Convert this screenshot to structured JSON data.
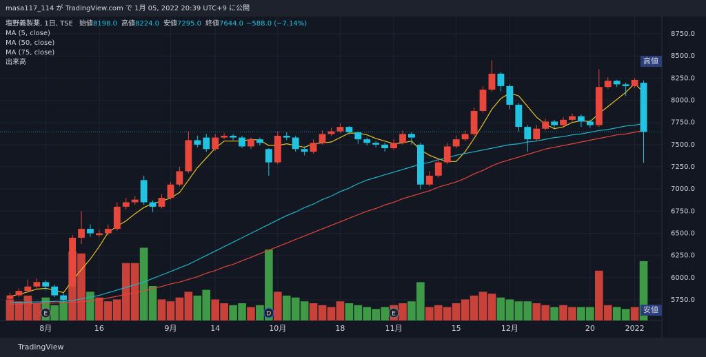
{
  "page_header": "masa117_114 が TradingView.com で 1月 05, 2022 20:39 UTC+9 に公開",
  "footer": "TradingView",
  "chart_data": {
    "type": "candlestick",
    "legend": {
      "symbol": "塩野義製薬, 1日, TSE",
      "items": [
        {
          "key": "始値",
          "value": "8198.0"
        },
        {
          "key": "高値",
          "value": "8224.0"
        },
        {
          "key": "安値",
          "value": "7295.0"
        },
        {
          "key": "終値",
          "value": "7644.0"
        }
      ],
      "change": "−588.0 (−7.14%)"
    },
    "categories": [
      null,
      null,
      null,
      null,
      "8月",
      null,
      null,
      null,
      null,
      null,
      "16",
      null,
      null,
      null,
      null,
      null,
      null,
      null,
      "9月",
      null,
      null,
      null,
      null,
      "14",
      null,
      null,
      null,
      null,
      null,
      null,
      "10月",
      null,
      null,
      null,
      null,
      null,
      null,
      "18",
      null,
      null,
      null,
      null,
      null,
      "11月",
      null,
      null,
      null,
      null,
      null,
      null,
      "15",
      null,
      null,
      null,
      null,
      null,
      "12月",
      null,
      null,
      null,
      null,
      null,
      null,
      null,
      null,
      "20",
      null,
      null,
      null,
      null,
      "2022",
      null
    ],
    "open": [
      5760,
      5800,
      5850,
      5900,
      5950,
      5900,
      5800,
      5900,
      6450,
      6550,
      6480,
      6500,
      6550,
      6800,
      6850,
      7100,
      6850,
      6800,
      6900,
      7050,
      7200,
      7550,
      7580,
      7450,
      7580,
      7600,
      7580,
      7480,
      7560,
      7450,
      7300,
      7600,
      7580,
      7450,
      7420,
      7520,
      7620,
      7650,
      7700,
      7640,
      7560,
      7520,
      7500,
      7460,
      7520,
      7620,
      7500,
      7050,
      7150,
      7300,
      7480,
      7560,
      7620,
      7880,
      8120,
      8300,
      8160,
      7950,
      7700,
      7560,
      7680,
      7760,
      7720,
      7780,
      7820,
      7760,
      7720,
      8150,
      8220,
      8180,
      8160,
      8198
    ],
    "high": [
      5830,
      5880,
      5980,
      5990,
      5970,
      5920,
      5820,
      6480,
      6750,
      6600,
      6540,
      6600,
      6850,
      6900,
      6920,
      7150,
      6870,
      6940,
      7080,
      7250,
      7650,
      7600,
      7620,
      7620,
      7630,
      7620,
      7600,
      7580,
      7580,
      7460,
      7650,
      7640,
      7600,
      7480,
      7560,
      7660,
      7690,
      7740,
      7710,
      7650,
      7580,
      7540,
      7520,
      7560,
      7660,
      7640,
      7520,
      7200,
      7340,
      7520,
      7600,
      7660,
      7920,
      8160,
      8450,
      8320,
      8180,
      7970,
      7720,
      7720,
      7790,
      7780,
      7810,
      7850,
      7840,
      7780,
      8350,
      8260,
      8230,
      8200,
      8250,
      8224
    ],
    "low": [
      5730,
      5780,
      5830,
      5870,
      5860,
      5780,
      5720,
      5880,
      6380,
      6460,
      6460,
      6480,
      6530,
      6770,
      6820,
      6820,
      6740,
      6780,
      6880,
      7030,
      7180,
      7470,
      7420,
      7430,
      7560,
      7550,
      7460,
      7450,
      7490,
      7150,
      7280,
      7550,
      7420,
      7380,
      7400,
      7500,
      7600,
      7630,
      7620,
      7510,
      7490,
      7470,
      7420,
      7440,
      7500,
      7500,
      7000,
      7030,
      7130,
      7280,
      7460,
      7540,
      7600,
      7860,
      8100,
      8100,
      7900,
      7650,
      7420,
      7540,
      7660,
      7690,
      7700,
      7760,
      7700,
      7690,
      7700,
      8130,
      8150,
      8050,
      8140,
      7295
    ],
    "close": [
      5800,
      5850,
      5900,
      5950,
      5900,
      5800,
      5750,
      6450,
      6550,
      6500,
      6500,
      6550,
      6800,
      6850,
      6880,
      6850,
      6800,
      6900,
      7050,
      7200,
      7550,
      7500,
      7450,
      7580,
      7600,
      7580,
      7480,
      7560,
      7520,
      7300,
      7600,
      7580,
      7450,
      7420,
      7520,
      7620,
      7650,
      7700,
      7640,
      7560,
      7520,
      7500,
      7460,
      7520,
      7620,
      7580,
      7050,
      7150,
      7300,
      7480,
      7560,
      7620,
      7880,
      8120,
      8300,
      8160,
      7950,
      7700,
      7560,
      7680,
      7760,
      7720,
      7780,
      7820,
      7760,
      7720,
      8150,
      8220,
      8180,
      8160,
      8230,
      7644
    ],
    "volume": [
      1100000,
      1000000,
      1300000,
      900000,
      1200000,
      800000,
      1000000,
      3600000,
      3500000,
      1500000,
      1200000,
      1000000,
      1100000,
      3000000,
      3000000,
      3800000,
      1800000,
      1100000,
      1000000,
      1200000,
      1500000,
      1300000,
      1600000,
      1100000,
      900000,
      800000,
      900000,
      700000,
      800000,
      3700000,
      1500000,
      1300000,
      1200000,
      1000000,
      900000,
      800000,
      700000,
      1000000,
      900000,
      800000,
      700000,
      600000,
      700000,
      800000,
      900000,
      1000000,
      2000000,
      700000,
      800000,
      700000,
      900000,
      1100000,
      1300000,
      1500000,
      1400000,
      1200000,
      1100000,
      1000000,
      1000000,
      900000,
      800000,
      700000,
      800000,
      700000,
      700000,
      700000,
      2600000,
      800000,
      700000,
      600000,
      700000,
      3100000
    ],
    "series": [
      {
        "name": "MA (5, close)",
        "color": "#e6c229",
        "values": [
          5790,
          5810,
          5840,
          5870,
          5880,
          5860,
          5830,
          5970,
          6090,
          6210,
          6350,
          6510,
          6580,
          6640,
          6720,
          6790,
          6840,
          6860,
          6900,
          6960,
          7100,
          7240,
          7350,
          7460,
          7540,
          7540,
          7540,
          7560,
          7550,
          7490,
          7490,
          7510,
          7490,
          7470,
          7510,
          7520,
          7530,
          7580,
          7630,
          7630,
          7610,
          7570,
          7540,
          7510,
          7520,
          7540,
          7440,
          7380,
          7340,
          7310,
          7310,
          7420,
          7570,
          7730,
          7900,
          8020,
          8080,
          8050,
          7930,
          7810,
          7730,
          7680,
          7700,
          7750,
          7770,
          7760,
          7850,
          7930,
          8010,
          8090,
          8190,
          8090
        ]
      },
      {
        "name": "MA (50, close)",
        "color": "#1fb5c9",
        "values": [
          5720,
          5722,
          5724,
          5726,
          5728,
          5732,
          5736,
          5740,
          5760,
          5780,
          5800,
          5830,
          5860,
          5890,
          5920,
          5950,
          5990,
          6030,
          6070,
          6110,
          6150,
          6200,
          6250,
          6300,
          6350,
          6400,
          6450,
          6500,
          6550,
          6600,
          6650,
          6700,
          6740,
          6790,
          6830,
          6880,
          6920,
          6970,
          7010,
          7060,
          7100,
          7130,
          7160,
          7190,
          7220,
          7250,
          7280,
          7300,
          7330,
          7350,
          7380,
          7400,
          7420,
          7440,
          7460,
          7480,
          7500,
          7510,
          7530,
          7540,
          7560,
          7580,
          7590,
          7610,
          7620,
          7640,
          7660,
          7670,
          7690,
          7710,
          7720,
          7740
        ]
      },
      {
        "name": "MA (75, close)",
        "color": "#e5453a",
        "values": [
          5700,
          5703,
          5706,
          5709,
          5712,
          5714,
          5717,
          5720,
          5730,
          5740,
          5750,
          5770,
          5790,
          5810,
          5830,
          5850,
          5880,
          5900,
          5930,
          5950,
          5980,
          6010,
          6050,
          6080,
          6120,
          6150,
          6190,
          6230,
          6270,
          6310,
          6350,
          6390,
          6430,
          6470,
          6510,
          6550,
          6590,
          6630,
          6670,
          6710,
          6750,
          6780,
          6820,
          6850,
          6890,
          6920,
          6950,
          6980,
          7020,
          7050,
          7080,
          7120,
          7170,
          7210,
          7260,
          7300,
          7330,
          7360,
          7390,
          7420,
          7450,
          7470,
          7490,
          7510,
          7530,
          7550,
          7570,
          7590,
          7610,
          7620,
          7640,
          7660
        ]
      }
    ],
    "volume_name": "出来高",
    "up_color": "#e8483c",
    "down_color": "#22c3e0",
    "volume_up_color": "#c8423a",
    "volume_down_color": "#3f9a47",
    "ylim": [
      5517,
      8898
    ],
    "vlim": [
      0,
      4500000
    ],
    "yticks": [
      {
        "value": 5750,
        "label": "5750.0"
      },
      {
        "value": 6000,
        "label": "6000.0"
      },
      {
        "value": 6250,
        "label": "6250.0"
      },
      {
        "value": 6500,
        "label": "6500.0"
      },
      {
        "value": 6750,
        "label": "6750.0"
      },
      {
        "value": 7000,
        "label": "7000.0"
      },
      {
        "value": 7250,
        "label": "7250.0"
      },
      {
        "value": 7500,
        "label": "7500.0"
      },
      {
        "value": 7750,
        "label": "7750.0"
      },
      {
        "value": 8000,
        "label": "8000.0"
      },
      {
        "value": 8250,
        "label": "8250.0"
      },
      {
        "value": 8500,
        "label": "8500.0"
      },
      {
        "value": 8750,
        "label": "8750.0"
      }
    ],
    "high_marker": "高値",
    "low_marker": "安値",
    "events": [
      "E",
      "D",
      "E"
    ],
    "grid": true
  }
}
